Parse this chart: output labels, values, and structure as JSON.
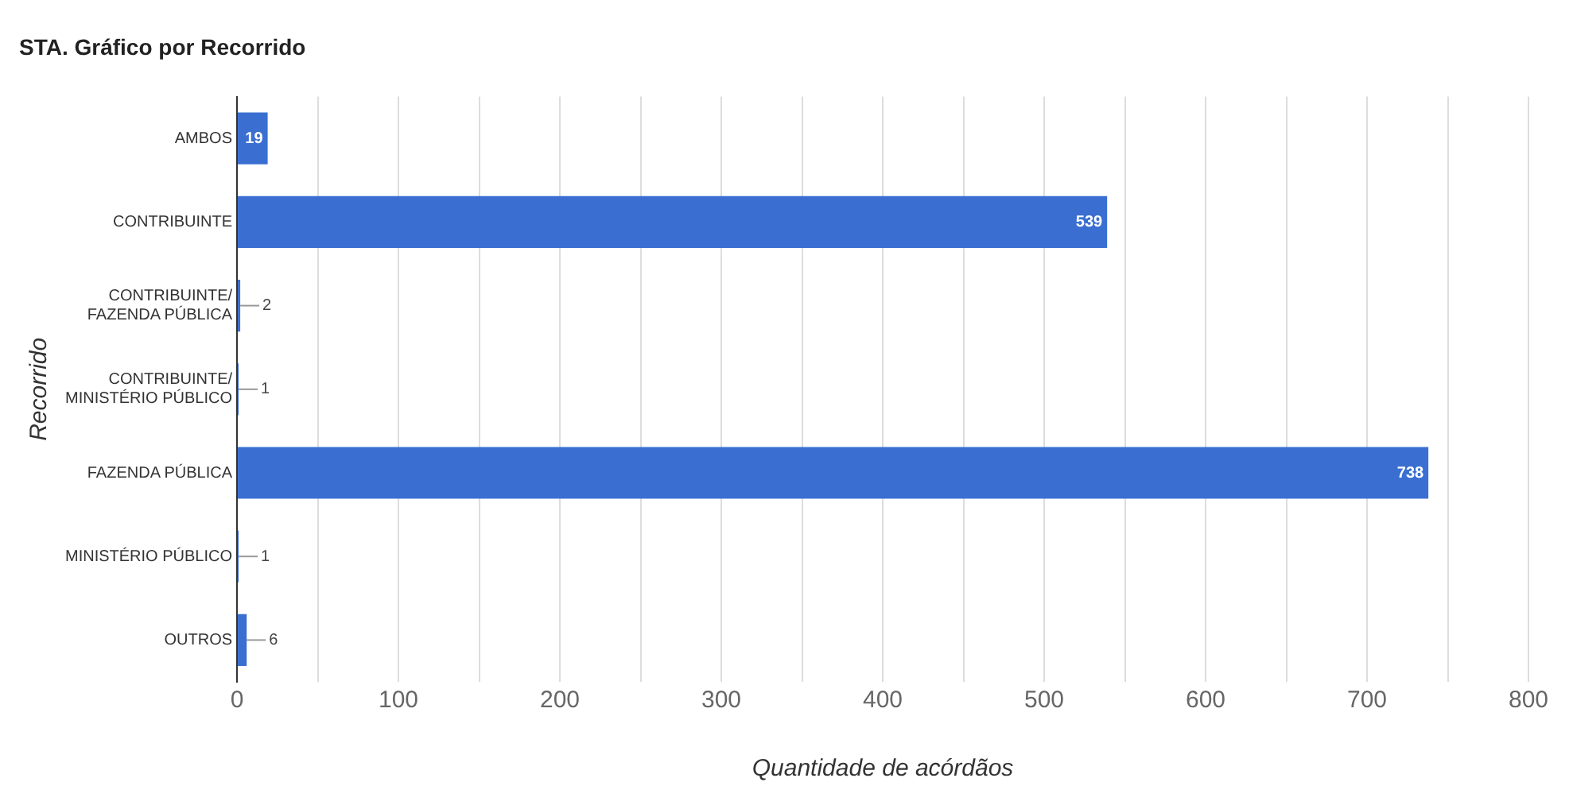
{
  "chart_data": {
    "type": "bar",
    "orientation": "horizontal",
    "title": "STA. Gráfico por Recorrido",
    "xlabel": "Quantidade de acórdãos",
    "ylabel": "Recorrido",
    "categories": [
      "AMBOS",
      "CONTRIBUINTE",
      "CONTRIBUINTE/FAZENDA PÚBLICA",
      "CONTRIBUINTE/MINISTÉRIO PÚBLICO",
      "FAZENDA PÚBLICA",
      "MINISTÉRIO PÚBLICO",
      "OUTROS"
    ],
    "values": [
      19,
      539,
      2,
      1,
      738,
      1,
      6
    ],
    "color": "#3a6fd1",
    "data_labels": true,
    "xlim": [
      0,
      800
    ],
    "xticks": [
      0,
      {
        "value": 50,
        "label": null
      },
      100,
      {
        "value": 150,
        "label": null
      },
      200,
      {
        "value": 250,
        "label": null
      },
      300,
      {
        "value": 350,
        "label": null
      },
      400,
      {
        "value": 450,
        "label": null
      },
      500,
      {
        "value": 550,
        "label": null
      },
      600,
      {
        "value": 650,
        "label": null
      },
      700,
      {
        "value": 750,
        "label": null
      },
      800
    ],
    "grid": "x",
    "legend": false
  }
}
